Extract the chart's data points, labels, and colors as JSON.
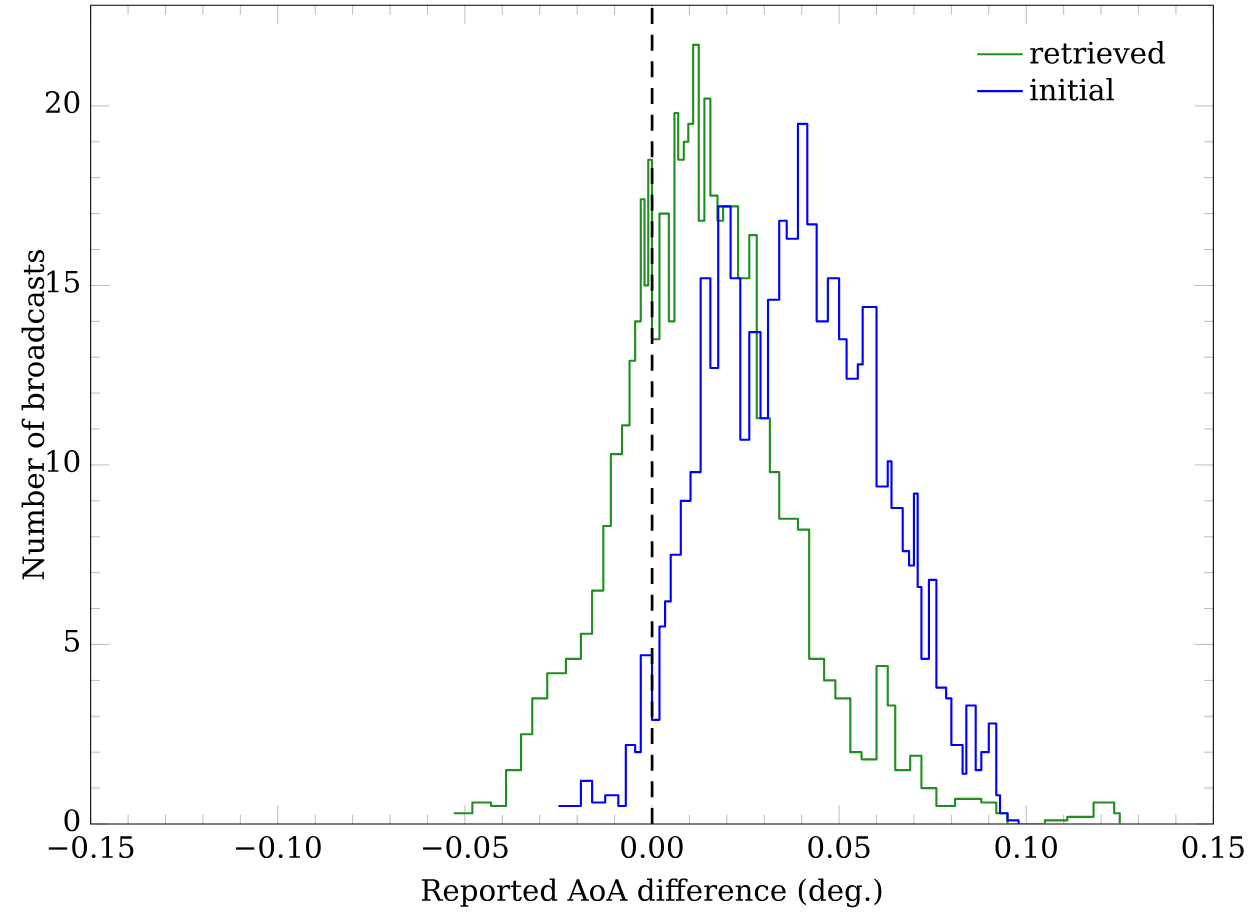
{
  "chart_data": {
    "type": "step",
    "xlabel": "Reported AoA difference (deg.)",
    "ylabel": "Number of broadcasts",
    "xlim": [
      -0.15,
      0.15
    ],
    "xticks": [
      {
        "value": -0.15,
        "label": "−0.15"
      },
      {
        "value": -0.1,
        "label": "−0.10"
      },
      {
        "value": -0.05,
        "label": "−0.05"
      },
      {
        "value": 0,
        "label": "0.00"
      },
      {
        "value": 0.05,
        "label": "0.05"
      },
      {
        "value": 0.1,
        "label": "0.10"
      },
      {
        "value": 0.15,
        "label": "0.15"
      }
    ],
    "ylim": [
      0,
      22.8
    ],
    "yticks": [
      0,
      5,
      10,
      15,
      20
    ],
    "legend": "top right",
    "ref_lines": [
      {
        "axis": "x",
        "value": 0,
        "line_style": "dashed",
        "color": "#000000"
      }
    ],
    "series": [
      {
        "name": "retrieved",
        "color": "#1f8f1f",
        "x": [
          -0.053,
          -0.048,
          -0.043,
          -0.039,
          -0.035,
          -0.032,
          -0.028,
          -0.023,
          -0.019,
          -0.016,
          -0.013,
          -0.011,
          -0.008,
          -0.006,
          -0.0045,
          -0.003,
          -0.002,
          -0.001,
          0.0,
          0.002,
          0.0045,
          0.006,
          0.007,
          0.0085,
          0.0097,
          0.011,
          0.0125,
          0.014,
          0.0156,
          0.0175,
          0.019,
          0.023,
          0.026,
          0.028,
          0.0315,
          0.034,
          0.039,
          0.042,
          0.046,
          0.049,
          0.053,
          0.056,
          0.06,
          0.063,
          0.065,
          0.069,
          0.072,
          0.076,
          0.081,
          0.088,
          0.092,
          0.095,
          0.105,
          0.111,
          0.118,
          0.1235,
          0.125
        ],
        "values": [
          0.3,
          0.6,
          0.5,
          1.5,
          2.5,
          3.5,
          4.2,
          4.6,
          5.3,
          6.5,
          8.3,
          10.3,
          11.1,
          12.9,
          14,
          17.4,
          15,
          18.5,
          13.5,
          17,
          14,
          19.8,
          18.5,
          19,
          19.5,
          21.7,
          16.8,
          20.2,
          17.5,
          16.8,
          17.2,
          15.2,
          16.4,
          11.3,
          9.8,
          8.5,
          8.2,
          4.6,
          4.0,
          3.5,
          2.0,
          1.8,
          4.4,
          3.3,
          1.5,
          1.9,
          1.0,
          0.5,
          0.7,
          0.6,
          0.3,
          0.0,
          0.1,
          0.2,
          0.6,
          0.3,
          0
        ]
      },
      {
        "name": "initial",
        "color": "#0000ff",
        "x": [
          -0.025,
          -0.019,
          -0.016,
          -0.0125,
          -0.009,
          -0.007,
          -0.0045,
          -0.003,
          0.0,
          0.002,
          0.0035,
          0.005,
          0.0077,
          0.0103,
          0.013,
          0.0156,
          0.0177,
          0.021,
          0.0236,
          0.026,
          0.029,
          0.031,
          0.034,
          0.036,
          0.039,
          0.0415,
          0.044,
          0.047,
          0.05,
          0.052,
          0.055,
          0.0563,
          0.06,
          0.063,
          0.064,
          0.067,
          0.0687,
          0.07,
          0.071,
          0.072,
          0.074,
          0.076,
          0.0786,
          0.08,
          0.083,
          0.084,
          0.0865,
          0.088,
          0.09,
          0.092,
          0.093,
          0.095,
          0.098
        ],
        "values": [
          0.5,
          1.2,
          0.6,
          0.8,
          0.5,
          2.2,
          2.0,
          4.7,
          2.9,
          5.5,
          6.2,
          7.5,
          9.0,
          9.8,
          15.2,
          12.7,
          17.2,
          15.2,
          10.7,
          13.7,
          11.3,
          14.6,
          16.8,
          16.3,
          19.5,
          16.7,
          14.0,
          15.2,
          13.5,
          12.4,
          12.8,
          14.4,
          9.4,
          10.1,
          8.8,
          7.6,
          7.2,
          9.2,
          6.6,
          4.6,
          6.8,
          3.8,
          3.5,
          2.2,
          1.4,
          3.3,
          1.5,
          2.0,
          2.8,
          0.8,
          0.3,
          0.1,
          0
        ]
      }
    ]
  }
}
